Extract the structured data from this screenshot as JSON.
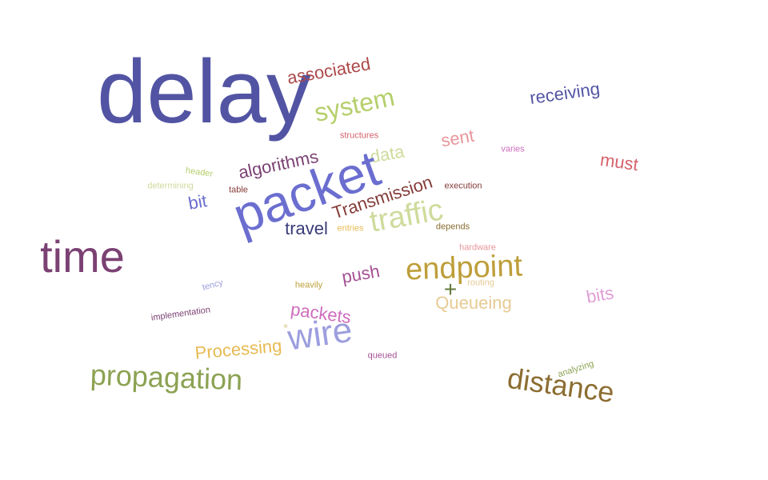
{
  "words": [
    {
      "text": "delay",
      "color": "#5254a3"
    },
    {
      "text": "associated",
      "color": "#ad494a"
    },
    {
      "text": "system",
      "color": "#b5cf6b"
    },
    {
      "text": "receiving",
      "color": "#5254a3"
    },
    {
      "text": "structures",
      "color": "#d6616b"
    },
    {
      "text": "sent",
      "color": "#e7969c"
    },
    {
      "text": "varies",
      "color": "#ce6dbd"
    },
    {
      "text": "must",
      "color": "#d6616b"
    },
    {
      "text": "data",
      "color": "#cedb9c"
    },
    {
      "text": "algorithms",
      "color": "#7b4173"
    },
    {
      "text": "packet",
      "color": "#6b6ecf"
    },
    {
      "text": "header",
      "color": "#b5cf6b"
    },
    {
      "text": "determining",
      "color": "#cedb9c"
    },
    {
      "text": "table",
      "color": "#843c39"
    },
    {
      "text": "bit",
      "color": "#6b6ecf"
    },
    {
      "text": "Transmission",
      "color": "#843c39"
    },
    {
      "text": "execution",
      "color": "#843c39"
    },
    {
      "text": "traffic",
      "color": "#cedb9c"
    },
    {
      "text": "travel",
      "color": "#393b79"
    },
    {
      "text": "entries",
      "color": "#e7ba52"
    },
    {
      "text": "depends",
      "color": "#8c6d31"
    },
    {
      "text": "time",
      "color": "#7b4173"
    },
    {
      "text": "hardware",
      "color": "#e7969c"
    },
    {
      "text": "endpoint",
      "color": "#bd9e39"
    },
    {
      "text": "push",
      "color": "#a55194"
    },
    {
      "text": "+",
      "color": "#637939"
    },
    {
      "text": "routing",
      "color": "#e7cb94"
    },
    {
      "text": "Queueing",
      "color": "#e7cb94"
    },
    {
      "text": "bits",
      "color": "#de9ed6"
    },
    {
      "text": "tency",
      "color": "#9c9ede"
    },
    {
      "text": "heavily",
      "color": "#bd9e39"
    },
    {
      "text": "implementation",
      "color": "#7b4173"
    },
    {
      "text": "packets",
      "color": "#ce6dbd"
    },
    {
      "text": "=",
      "color": "#bd9e39"
    },
    {
      "text": "wire",
      "color": "#9c9ede"
    },
    {
      "text": "Processing",
      "color": "#e7ba52"
    },
    {
      "text": "queued",
      "color": "#a55194"
    },
    {
      "text": "propagation",
      "color": "#8ca252"
    },
    {
      "text": "analyzing",
      "color": "#8ca252"
    },
    {
      "text": "distance",
      "color": "#8c6d31"
    }
  ]
}
